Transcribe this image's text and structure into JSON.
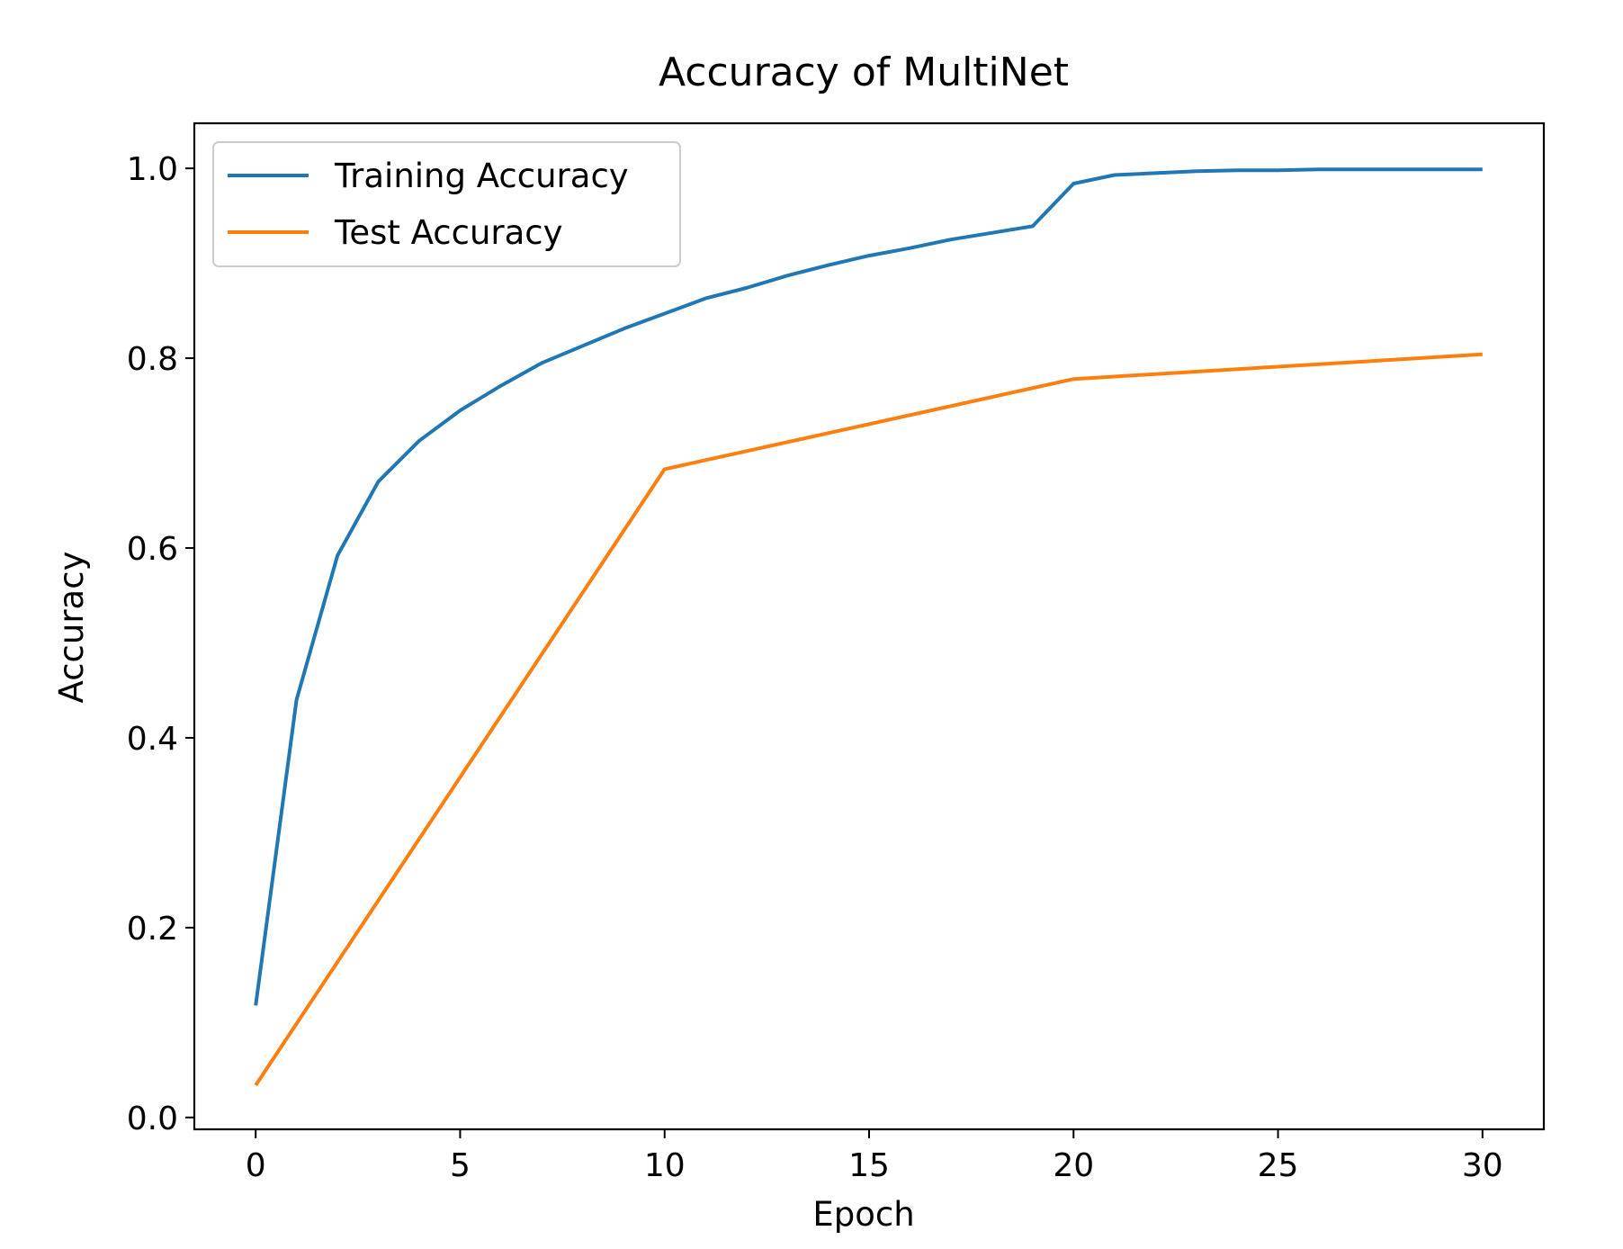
{
  "chart_data": {
    "type": "line",
    "title": "Accuracy of MultiNet",
    "xlabel": "Epoch",
    "ylabel": "Accuracy",
    "xlim": [
      -1.5,
      31.5
    ],
    "ylim": [
      -0.0125,
      1.0475
    ],
    "xticks": [
      0,
      5,
      10,
      15,
      20,
      25,
      30
    ],
    "yticks": [
      0.0,
      0.2,
      0.4,
      0.6,
      0.8,
      1.0
    ],
    "xtick_labels": [
      "0",
      "5",
      "10",
      "15",
      "20",
      "25",
      "30"
    ],
    "ytick_labels": [
      "0.0",
      "0.2",
      "0.4",
      "0.6",
      "0.8",
      "1.0"
    ],
    "grid": false,
    "legend_position": "upper-left",
    "series": [
      {
        "name": "Training Accuracy",
        "color": "#1f77b4",
        "x": [
          0,
          1,
          2,
          3,
          4,
          5,
          6,
          7,
          8,
          9,
          10,
          11,
          12,
          13,
          14,
          15,
          16,
          17,
          18,
          19,
          20,
          21,
          22,
          23,
          24,
          25,
          26,
          27,
          28,
          29,
          30
        ],
        "y": [
          0.118,
          0.44,
          0.592,
          0.67,
          0.713,
          0.745,
          0.771,
          0.795,
          0.813,
          0.831,
          0.847,
          0.863,
          0.874,
          0.887,
          0.898,
          0.908,
          0.916,
          0.925,
          0.932,
          0.939,
          0.984,
          0.993,
          0.995,
          0.997,
          0.998,
          0.998,
          0.999,
          0.999,
          0.999,
          0.999,
          0.999
        ]
      },
      {
        "name": "Test Accuracy",
        "color": "#ff7f0e",
        "x": [
          0,
          10,
          20,
          30
        ],
        "y": [
          0.034,
          0.683,
          0.778,
          0.804
        ]
      }
    ]
  }
}
